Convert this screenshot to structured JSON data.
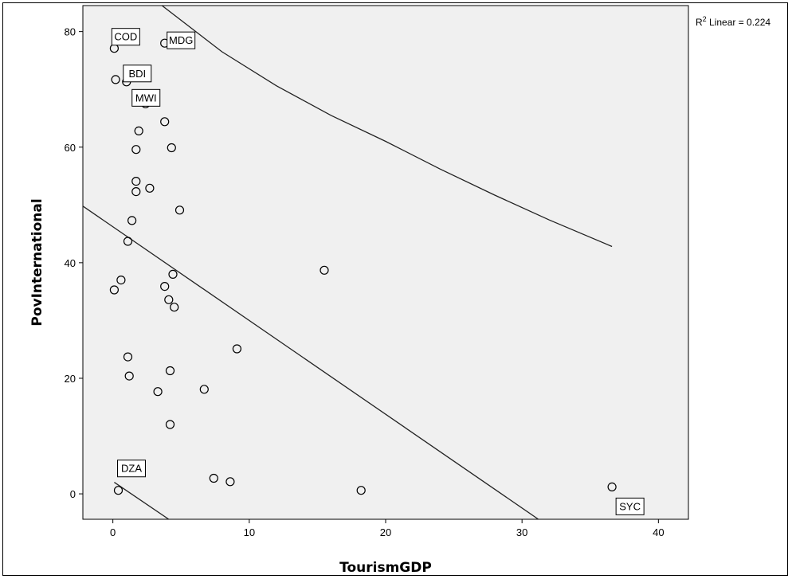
{
  "chart_data": {
    "type": "scatter",
    "xlabel": "TourismGDP",
    "ylabel": "PovInternational",
    "xlim": [
      -2.2,
      42.2
    ],
    "ylim": [
      -4.4,
      84.5
    ],
    "xticks": [
      0,
      10,
      20,
      30,
      40
    ],
    "yticks": [
      0,
      20,
      40,
      60,
      80
    ],
    "annotation": {
      "prefix": "R",
      "sup": "2",
      "suffix": " Linear = 0.224"
    },
    "points": [
      {
        "x": 0.1,
        "y": 77.1
      },
      {
        "x": 3.8,
        "y": 78.0
      },
      {
        "x": 0.2,
        "y": 71.7
      },
      {
        "x": 1.0,
        "y": 71.3
      },
      {
        "x": 2.4,
        "y": 67.5
      },
      {
        "x": 3.8,
        "y": 64.4
      },
      {
        "x": 1.9,
        "y": 62.8
      },
      {
        "x": 1.7,
        "y": 59.6
      },
      {
        "x": 4.3,
        "y": 59.9
      },
      {
        "x": 1.7,
        "y": 54.1
      },
      {
        "x": 1.7,
        "y": 52.3
      },
      {
        "x": 2.7,
        "y": 52.9
      },
      {
        "x": 4.9,
        "y": 49.1
      },
      {
        "x": 1.4,
        "y": 47.3
      },
      {
        "x": 1.1,
        "y": 43.7
      },
      {
        "x": 15.5,
        "y": 38.7
      },
      {
        "x": 4.4,
        "y": 38.0
      },
      {
        "x": 0.6,
        "y": 37.0
      },
      {
        "x": 3.8,
        "y": 35.9
      },
      {
        "x": 0.1,
        "y": 35.3
      },
      {
        "x": 4.1,
        "y": 33.6
      },
      {
        "x": 4.5,
        "y": 32.3
      },
      {
        "x": 9.1,
        "y": 25.1
      },
      {
        "x": 1.1,
        "y": 23.7
      },
      {
        "x": 4.2,
        "y": 21.3
      },
      {
        "x": 1.2,
        "y": 20.4
      },
      {
        "x": 6.7,
        "y": 18.1
      },
      {
        "x": 3.3,
        "y": 17.7
      },
      {
        "x": 4.2,
        "y": 12.0
      },
      {
        "x": 7.4,
        "y": 2.7
      },
      {
        "x": 8.6,
        "y": 2.1
      },
      {
        "x": 0.4,
        "y": 0.6
      },
      {
        "x": 18.2,
        "y": 0.6
      },
      {
        "x": 36.6,
        "y": 1.2
      }
    ],
    "point_labels": [
      {
        "text": "COD",
        "x": 0.1,
        "y": 77.1
      },
      {
        "text": "MDG",
        "x": 3.8,
        "y": 78.0
      },
      {
        "text": "BDI",
        "x": 1.0,
        "y": 71.3
      },
      {
        "text": "MWI",
        "x": 2.4,
        "y": 67.5
      },
      {
        "text": "DZA",
        "x": 0.4,
        "y": 0.6
      },
      {
        "text": "SYC",
        "x": 36.6,
        "y": 1.2
      }
    ],
    "fit_lines": [
      {
        "x": [
          -2.2,
          31.2
        ],
        "y": [
          49.8,
          -4.4
        ]
      },
      {
        "x": [
          0.1,
          4.1
        ],
        "y": [
          2.0,
          -4.4
        ]
      },
      {
        "x": [
          3.6,
          8,
          12,
          16,
          20,
          24,
          28,
          32,
          36.6
        ],
        "y": [
          84.5,
          76.5,
          70.6,
          65.5,
          61.0,
          56.2,
          51.7,
          47.4,
          42.8
        ]
      }
    ],
    "colors": {
      "plot_bg": "#f0f0f0",
      "ink": "#000000"
    },
    "grid": false,
    "legend": "none"
  }
}
